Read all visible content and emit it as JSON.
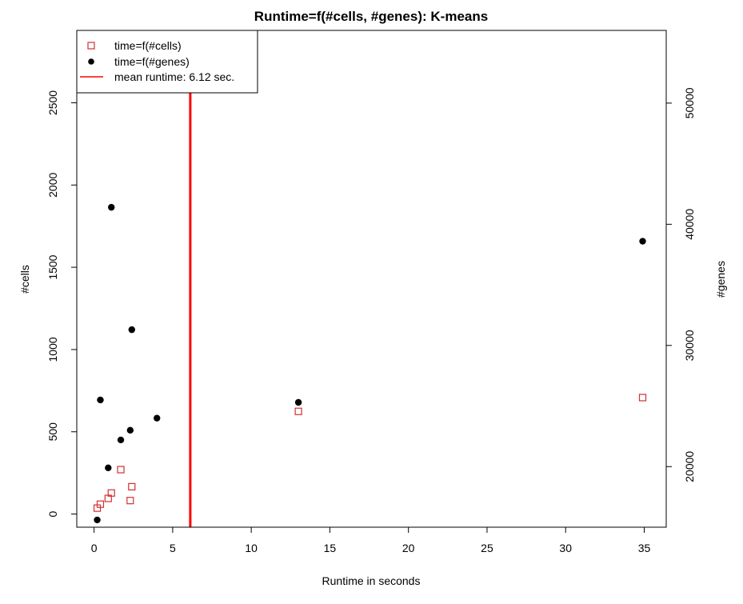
{
  "chart_data": {
    "type": "scatter",
    "title": "Runtime=f(#cells, #genes): K-means",
    "xlabel": "Runtime in seconds",
    "ylabel": "#cells",
    "ylabel_right": "#genes",
    "xlim": [
      -1.1,
      36.4
    ],
    "ylim": [
      -80,
      2940
    ],
    "ylim_right": [
      15000,
      56000
    ],
    "x_ticks": [
      0,
      5,
      10,
      15,
      20,
      25,
      30,
      35
    ],
    "y_ticks": [
      0,
      500,
      1000,
      1500,
      2000,
      2500
    ],
    "y_ticks_right": [
      20000,
      30000,
      40000,
      50000
    ],
    "grid": false,
    "legend_position": "top-left",
    "legend": [
      {
        "label": "time=f(#cells)",
        "marker": "open-square",
        "color": "#d03030"
      },
      {
        "label": "time=f(#genes)",
        "marker": "filled-circle",
        "color": "#000000"
      },
      {
        "label": "mean runtime: 6.12 sec.",
        "marker": "line",
        "color": "#ff0000"
      }
    ],
    "series": [
      {
        "name": "time=f(#cells)",
        "axis": "left",
        "marker": "open-square",
        "color": "#d03030",
        "x": [
          0.2,
          0.4,
          0.9,
          1.1,
          1.7,
          2.3,
          2.4,
          13.0,
          34.9
        ],
        "y": [
          36,
          60,
          95,
          128,
          270,
          82,
          166,
          624,
          708
        ]
      },
      {
        "name": "time=f(#genes)",
        "axis": "right",
        "marker": "filled-circle",
        "color": "#000000",
        "x": [
          0.2,
          0.4,
          0.9,
          1.1,
          1.7,
          2.3,
          2.4,
          4.0,
          13.0,
          34.9
        ],
        "y": [
          15600,
          25500,
          19900,
          41400,
          22200,
          23000,
          31300,
          24000,
          25300,
          38600
        ]
      }
    ],
    "vertical_lines": [
      {
        "x": 6.12,
        "color": "#ff0000",
        "label": "mean runtime: 6.12 sec."
      }
    ]
  }
}
